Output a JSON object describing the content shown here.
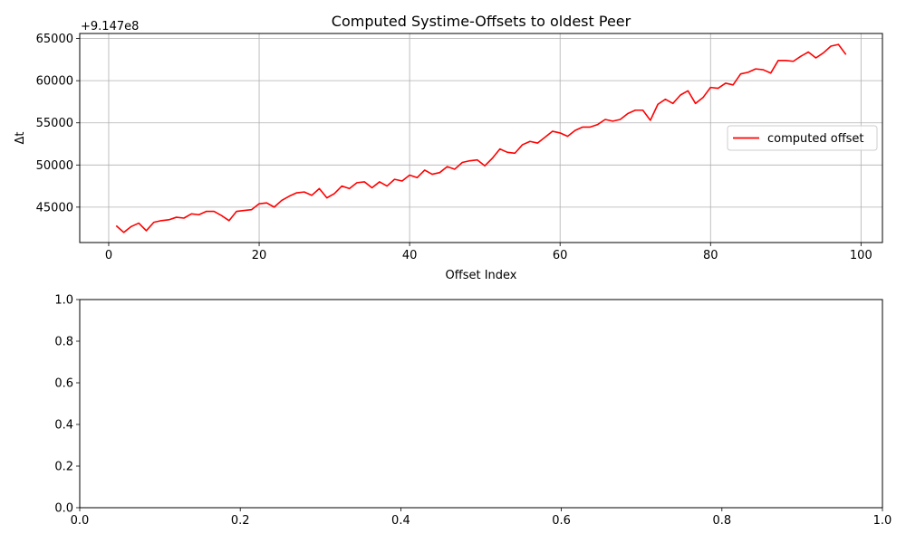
{
  "chart_data": [
    {
      "type": "line",
      "title": "Computed Systime-Offsets to oldest Peer",
      "xlabel": "Offset Index",
      "ylabel": "Δt",
      "offset_text": "+9.147e8",
      "xlim": [
        -3.85,
        102.85
      ],
      "ylim": [
        40800,
        65600
      ],
      "xticks": [
        0,
        20,
        40,
        60,
        80,
        100
      ],
      "xtick_labels": [
        "0",
        "20",
        "40",
        "60",
        "80",
        "100"
      ],
      "yticks": [
        45000,
        50000,
        55000,
        60000,
        65000
      ],
      "ytick_labels": [
        "45000",
        "50000",
        "55000",
        "60000",
        "65000"
      ],
      "grid": true,
      "legend": {
        "location": "center-right",
        "entries": [
          "computed offset"
        ]
      },
      "series": [
        {
          "name": "computed offset",
          "color": "#ff0000",
          "x": [
            1,
            2,
            3,
            4,
            5,
            6,
            7,
            8,
            9,
            10,
            11,
            12,
            13,
            14,
            15,
            16,
            17,
            18,
            19,
            20,
            21,
            22,
            23,
            24,
            25,
            26,
            27,
            28,
            29,
            30,
            31,
            32,
            33,
            34,
            35,
            36,
            37,
            38,
            39,
            40,
            41,
            42,
            43,
            44,
            45,
            46,
            47,
            48,
            49,
            50,
            51,
            52,
            53,
            54,
            55,
            56,
            57,
            58,
            59,
            60,
            61,
            62,
            63,
            64,
            65,
            66,
            67,
            68,
            69,
            70,
            71,
            72,
            73,
            74,
            75,
            76,
            77,
            78,
            79,
            80,
            81,
            82,
            83,
            84,
            85,
            86,
            87,
            88,
            89,
            90,
            91,
            92,
            93,
            94,
            95,
            96,
            97,
            98
          ],
          "values": [
            42800,
            42000,
            42700,
            43100,
            42200,
            43200,
            43400,
            43500,
            43800,
            43700,
            44200,
            44100,
            44500,
            44500,
            44000,
            43400,
            44500,
            44600,
            44700,
            45400,
            45500,
            45000,
            45800,
            46300,
            46700,
            46800,
            46400,
            47200,
            46100,
            46600,
            47500,
            47200,
            47900,
            48000,
            47300,
            48000,
            47500,
            48300,
            48100,
            48800,
            48500,
            49400,
            48900,
            49100,
            49800,
            49500,
            50300,
            50500,
            50600,
            49900,
            50800,
            51900,
            51500,
            51400,
            52400,
            52800,
            52600,
            53300,
            54000,
            53800,
            53400,
            54100,
            54500,
            54500,
            54800,
            55400,
            55200,
            55400,
            56100,
            56500,
            56500,
            55300,
            57200,
            57800,
            57300,
            58300,
            58800,
            57300,
            58000,
            59200,
            59100,
            59700,
            59500,
            60800,
            61000,
            61400,
            61300,
            60900,
            62400,
            62400,
            62300,
            62900,
            63400,
            62700,
            63300,
            64100,
            64300,
            63100
          ]
        }
      ]
    },
    {
      "type": "line",
      "xlim": [
        0,
        1
      ],
      "ylim": [
        0,
        1
      ],
      "xticks": [
        0,
        0.2,
        0.4,
        0.6,
        0.8,
        1
      ],
      "xtick_labels": [
        "0.0",
        "0.2",
        "0.4",
        "0.6",
        "0.8",
        "1.0"
      ],
      "yticks": [
        0,
        0.2,
        0.4,
        0.6,
        0.8,
        1
      ],
      "ytick_labels": [
        "0.0",
        "0.2",
        "0.4",
        "0.6",
        "0.8",
        "1.0"
      ],
      "grid": false,
      "series": []
    }
  ]
}
